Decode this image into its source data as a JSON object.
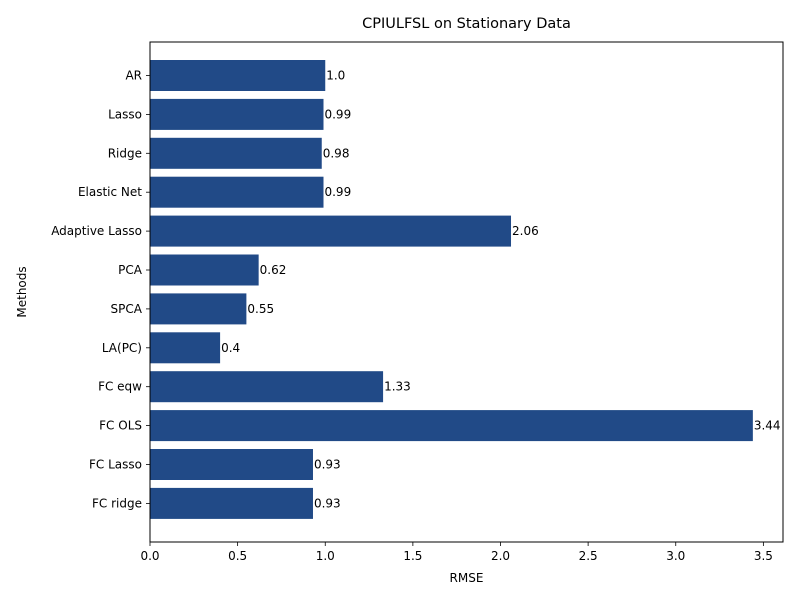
{
  "chart_data": {
    "type": "bar",
    "orientation": "horizontal",
    "title": "CPIULFSL on Stationary Data",
    "xlabel": "RMSE",
    "ylabel": "Methods",
    "categories": [
      "AR",
      "Lasso",
      "Ridge",
      "Elastic Net",
      "Adaptive Lasso",
      "PCA",
      "SPCA",
      "LA(PC)",
      "FC eqw",
      "FC OLS",
      "FC Lasso",
      "FC ridge"
    ],
    "values": [
      1.0,
      0.99,
      0.98,
      0.99,
      2.06,
      0.62,
      0.55,
      0.4,
      1.33,
      3.44,
      0.93,
      0.93
    ],
    "data_labels": [
      "1.0",
      "0.99",
      "0.98",
      "0.99",
      "2.06",
      "0.62",
      "0.55",
      "0.4",
      "1.33",
      "3.44",
      "0.93",
      "0.93"
    ],
    "xlim": [
      0,
      3.612
    ],
    "xticks": [
      0.0,
      0.5,
      1.0,
      1.5,
      2.0,
      2.5,
      3.0,
      3.5
    ],
    "xtick_labels": [
      "0.0",
      "0.5",
      "1.0",
      "1.5",
      "2.0",
      "2.5",
      "3.0",
      "3.5"
    ],
    "grid": false,
    "bar_color": "#214a87"
  }
}
